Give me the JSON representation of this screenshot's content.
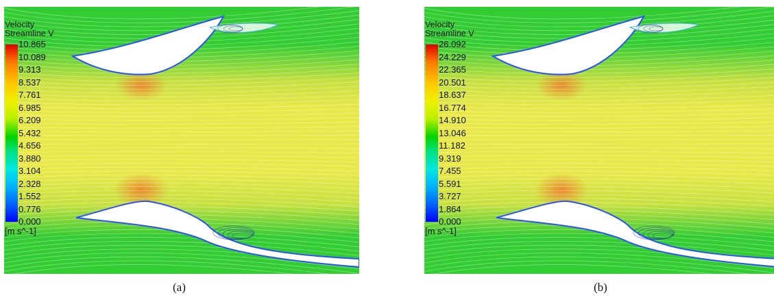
{
  "panels": [
    {
      "id": "a",
      "legend": {
        "title_line1": "Velocity",
        "title_line2": "Streamline V",
        "ticks": [
          "10.865",
          "10.089",
          "9.313",
          "8.537",
          "7.761",
          "6.985",
          "6.209",
          "5.432",
          "4.656",
          "3.880",
          "3.104",
          "2.328",
          "1.552",
          "0.776",
          "0.000"
        ],
        "unit": "[m s^-1]"
      },
      "caption": "(a)"
    },
    {
      "id": "b",
      "legend": {
        "title_line1": "Velocity",
        "title_line2": "Streamline V",
        "ticks": [
          "26.092",
          "24.229",
          "22.365",
          "20.501",
          "18.637",
          "16.774",
          "14.910",
          "13.046",
          "11.182",
          "9.319",
          "7.455",
          "5.591",
          "3.727",
          "1.864",
          "0.000"
        ],
        "unit": "[m s^-1]"
      },
      "caption": "(b)"
    }
  ],
  "colors": {
    "outer_flow": "#33cc33",
    "core_flow": "#e8e84a",
    "peak": "#ee7a2a",
    "wall_low": "#2a50ff",
    "recirculation": "#2a3a9a"
  }
}
